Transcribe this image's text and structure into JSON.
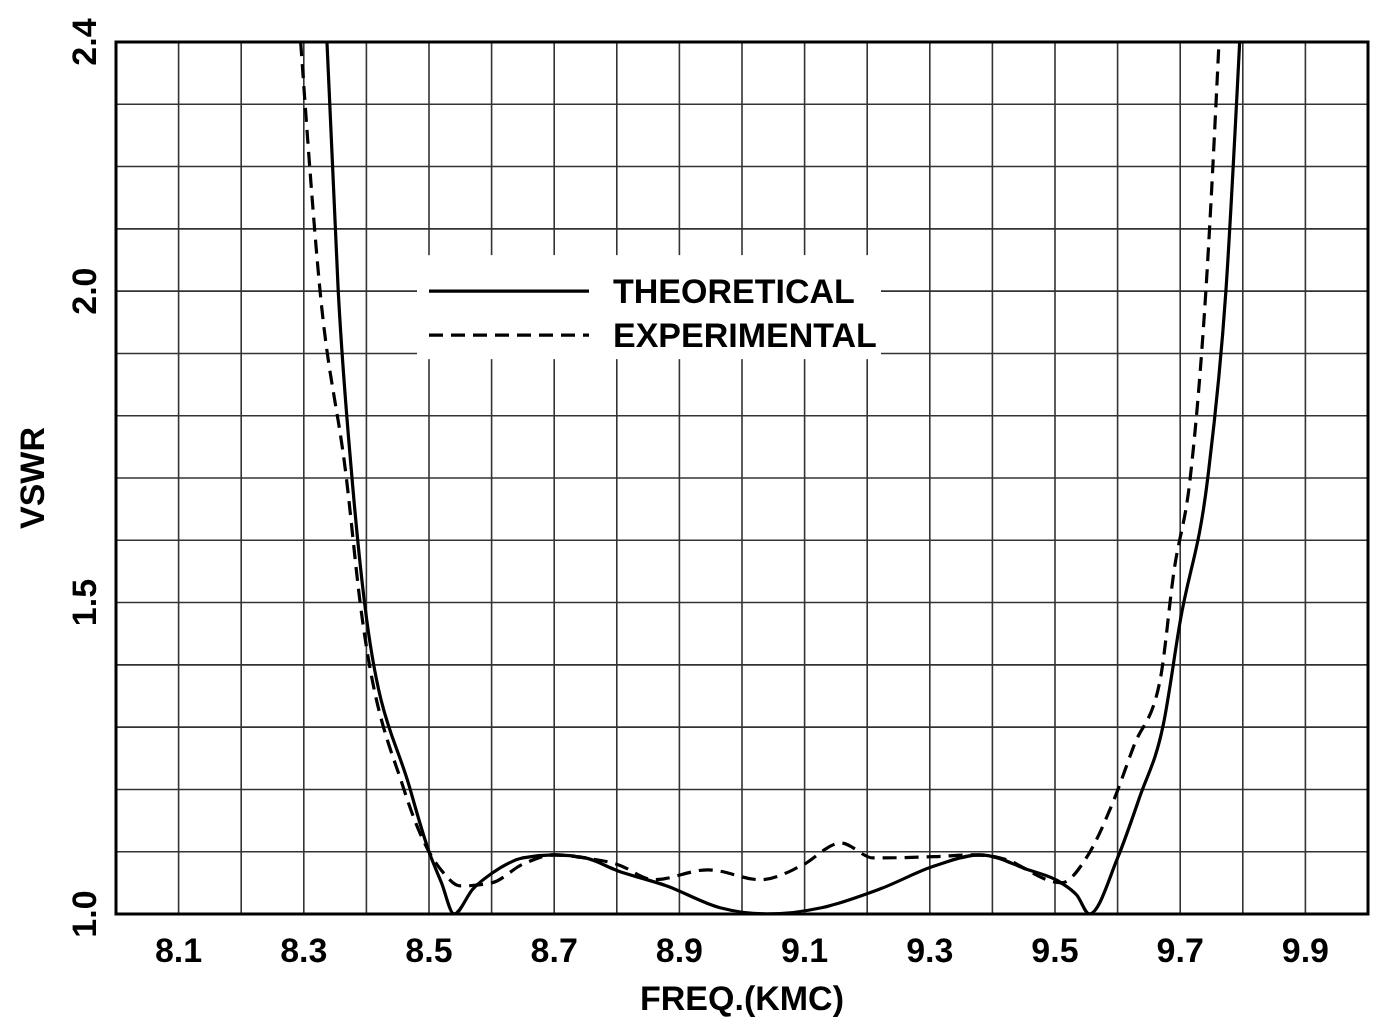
{
  "chart_data": {
    "type": "line",
    "xlabel": "FREQ.(KMC)",
    "ylabel": "VSWR",
    "xlim": [
      8.0,
      10.0
    ],
    "ylim": [
      1.0,
      2.4
    ],
    "xticks": [
      8.1,
      {
        "value": 8.2,
        "label": null
      },
      8.3,
      {
        "value": 8.4,
        "label": null
      },
      8.5,
      {
        "value": 8.6,
        "label": null
      },
      8.7,
      {
        "value": 8.8,
        "label": null
      },
      8.9,
      {
        "value": 9.0,
        "label": null
      },
      9.1,
      {
        "value": 9.2,
        "label": null
      },
      9.3,
      {
        "value": 9.4,
        "label": null
      },
      9.5,
      {
        "value": 9.6,
        "label": null
      },
      9.7,
      {
        "value": 9.8,
        "label": null
      },
      9.9
    ],
    "yticks": [
      {
        "value": 1.0,
        "label": "1.0"
      },
      {
        "value": 1.1,
        "label": null
      },
      {
        "value": 1.2,
        "label": null
      },
      {
        "value": 1.3,
        "label": null
      },
      {
        "value": 1.4,
        "label": null
      },
      1.5,
      {
        "value": 1.6,
        "label": null
      },
      {
        "value": 1.7,
        "label": null
      },
      {
        "value": 1.8,
        "label": null
      },
      {
        "value": 1.9,
        "label": null
      },
      {
        "value": 2.0,
        "label": "2.0"
      },
      {
        "value": 2.1,
        "label": null
      },
      {
        "value": 2.2,
        "label": null
      },
      {
        "value": 2.3,
        "label": null
      },
      2.4
    ],
    "grid": true,
    "legend": "top",
    "marker": "none",
    "series": [
      {
        "name": "THEORETICAL",
        "color": "#000000",
        "line_style": "solid",
        "x": [
          8.337,
          8.355,
          8.377,
          8.397,
          8.47,
          8.5,
          8.52,
          8.54,
          8.57,
          8.6,
          8.65,
          8.7,
          8.75,
          8.8,
          8.88,
          8.965,
          9.04,
          9.127,
          9.22,
          9.307,
          9.38,
          9.457,
          9.51,
          9.535,
          9.555,
          9.6,
          9.635,
          9.673,
          9.7,
          9.744,
          9.773,
          9.795
        ],
        "values": [
          2.4,
          2.0,
          1.7,
          1.5,
          1.2,
          1.1,
          1.05,
          1.0,
          1.04,
          1.065,
          1.09,
          1.095,
          1.09,
          1.07,
          1.045,
          1.01,
          1.0,
          1.01,
          1.04,
          1.077,
          1.095,
          1.071,
          1.05,
          1.03,
          1.0,
          1.09,
          1.187,
          1.304,
          1.47,
          1.7,
          2.0,
          2.4
        ]
      },
      {
        "name": "EXPERIMENTAL",
        "color": "#000000",
        "line_style": "dashed",
        "x": [
          8.295,
          8.326,
          8.368,
          8.39,
          8.46,
          8.5,
          8.52,
          8.55,
          8.6,
          8.65,
          8.7,
          8.75,
          8.8,
          8.86,
          8.945,
          9.03,
          9.094,
          9.158,
          9.21,
          9.307,
          9.37,
          9.413,
          9.51,
          9.55,
          9.594,
          9.626,
          9.668,
          9.69,
          9.716,
          9.741,
          9.762
        ],
        "values": [
          2.4,
          2.0,
          1.7,
          1.5,
          1.2,
          1.1,
          1.07,
          1.045,
          1.05,
          1.08,
          1.095,
          1.09,
          1.08,
          1.055,
          1.071,
          1.055,
          1.077,
          1.114,
          1.09,
          1.092,
          1.095,
          1.09,
          1.05,
          1.09,
          1.183,
          1.27,
          1.376,
          1.55,
          1.7,
          2.0,
          2.4
        ]
      }
    ]
  }
}
